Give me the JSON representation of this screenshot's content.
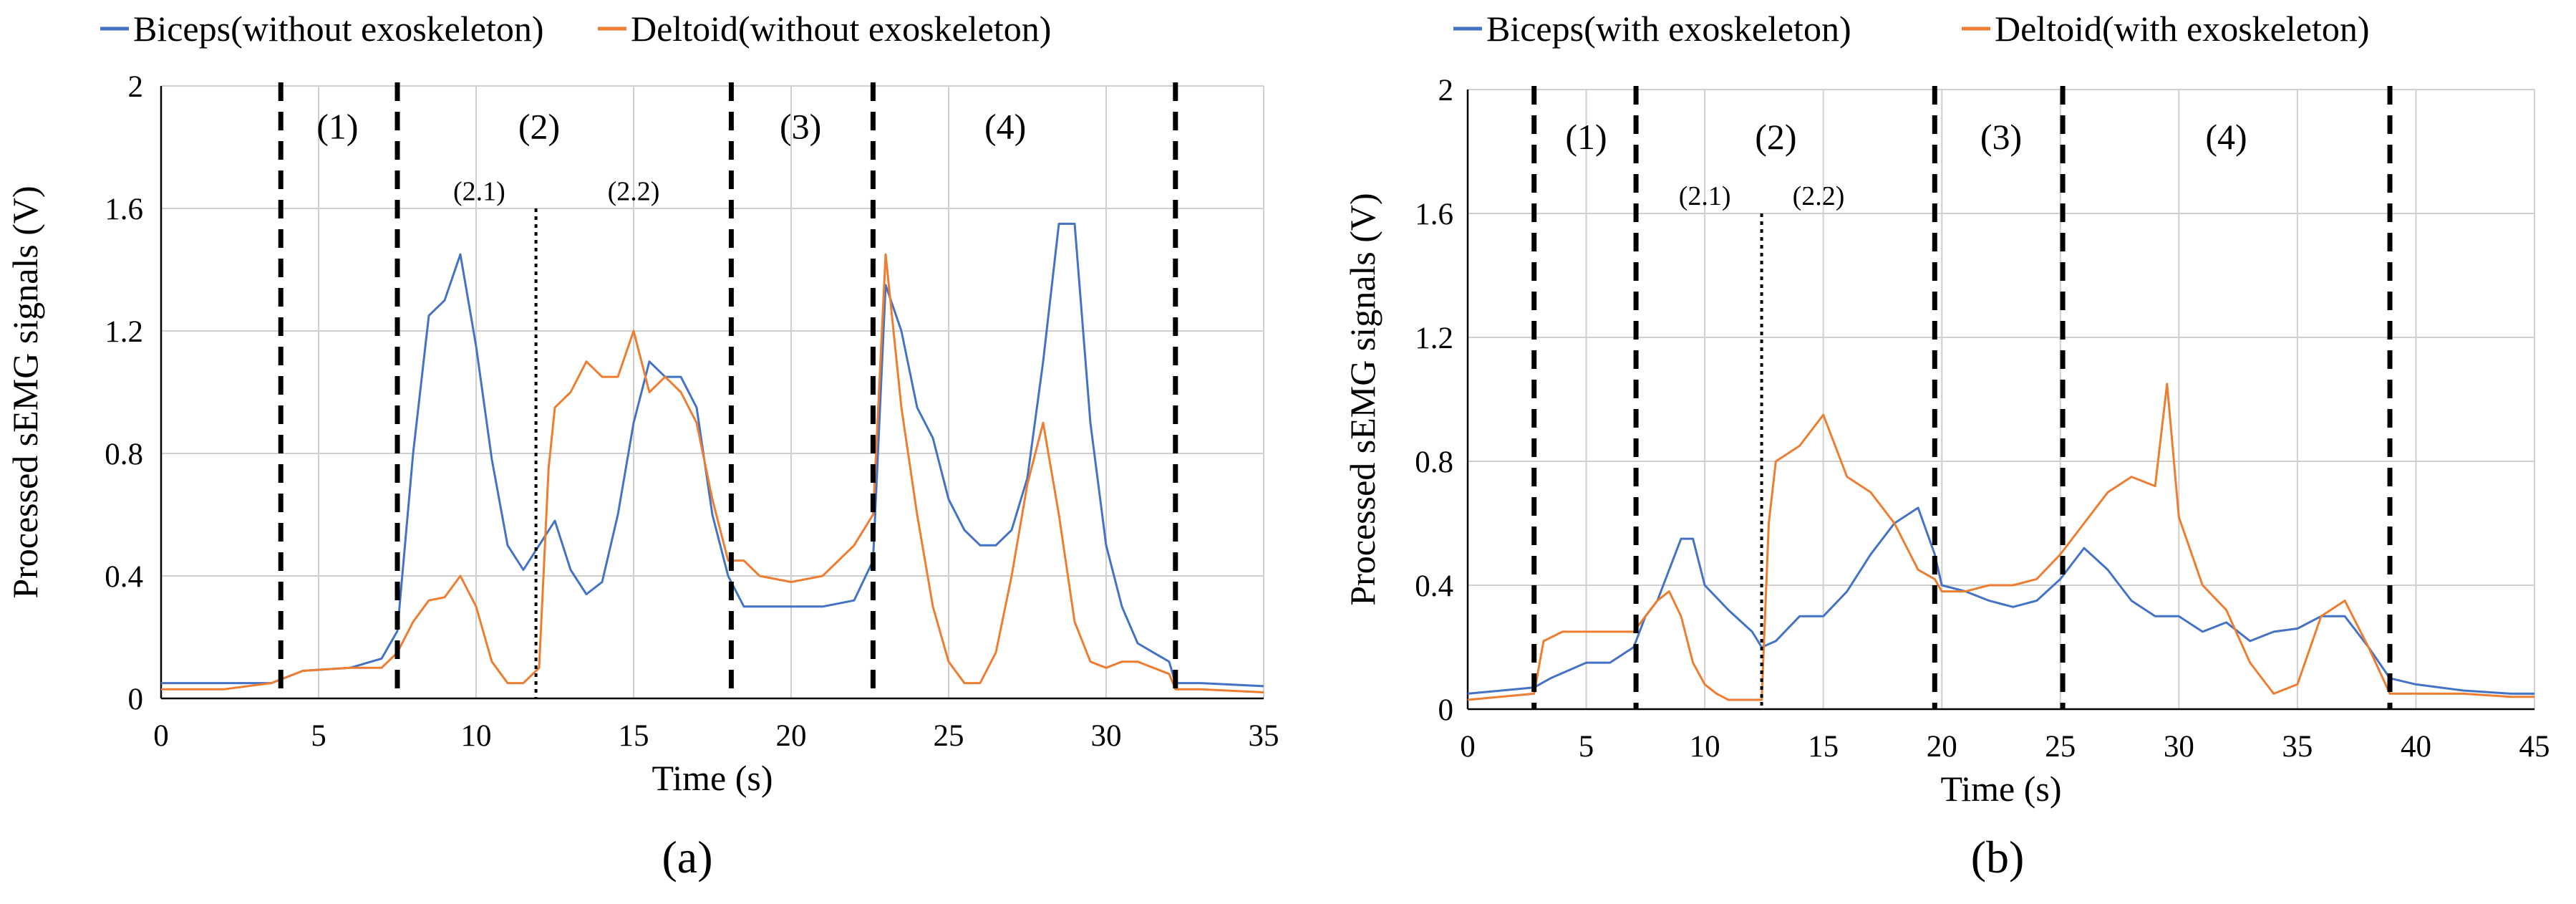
{
  "chart_data": [
    {
      "panel_label": "(a)",
      "type": "line",
      "title": "",
      "xlabel": "Time (s)",
      "ylabel": "Processed sEMG signals (V)",
      "xlim": [
        0,
        35
      ],
      "ylim": [
        0,
        2
      ],
      "xticks": [
        0,
        5,
        10,
        15,
        20,
        25,
        30,
        35
      ],
      "yticks": [
        "0",
        "0.4",
        "0.8",
        "1.2",
        "1.6",
        "2"
      ],
      "ytick_values": [
        0,
        0.4,
        0.8,
        1.2,
        1.6,
        2
      ],
      "grid": true,
      "legend_position": "top",
      "phase_boundaries": [
        3.8,
        7.5,
        18.1,
        22.6,
        32.2
      ],
      "subphase_boundary": 11.9,
      "phase_labels": [
        {
          "text": "(1)",
          "x": 5.6,
          "y": 1.87
        },
        {
          "text": "(2)",
          "x": 12.0,
          "y": 1.87
        },
        {
          "text": "(3)",
          "x": 20.3,
          "y": 1.87
        },
        {
          "text": "(4)",
          "x": 26.8,
          "y": 1.87
        }
      ],
      "subphase_labels": [
        {
          "text": "(2.1)",
          "x": 10.1,
          "y": 1.66
        },
        {
          "text": "(2.2)",
          "x": 15.0,
          "y": 1.66
        }
      ],
      "series": [
        {
          "name": "Biceps(without exoskeleton)",
          "color": "#4472c4",
          "x": [
            0,
            2,
            3.5,
            4.5,
            6,
            7,
            7.5,
            8,
            8.5,
            9,
            9.5,
            10,
            10.5,
            11,
            11.5,
            12,
            12.5,
            13,
            13.5,
            14,
            14.5,
            15,
            15.5,
            16,
            16.5,
            17,
            17.5,
            18,
            18.5,
            19,
            20,
            21,
            22,
            22.6,
            23,
            23.5,
            24,
            24.5,
            25,
            25.5,
            26,
            26.5,
            27,
            27.5,
            28,
            28.5,
            29,
            29.5,
            30,
            30.5,
            31,
            31.5,
            32,
            32.2,
            33,
            35
          ],
          "values": [
            0.05,
            0.05,
            0.05,
            0.09,
            0.1,
            0.13,
            0.22,
            0.8,
            1.25,
            1.3,
            1.45,
            1.15,
            0.78,
            0.5,
            0.42,
            0.5,
            0.58,
            0.42,
            0.34,
            0.38,
            0.6,
            0.9,
            1.1,
            1.05,
            1.05,
            0.95,
            0.6,
            0.4,
            0.3,
            0.3,
            0.3,
            0.3,
            0.32,
            0.45,
            1.35,
            1.2,
            0.95,
            0.85,
            0.65,
            0.55,
            0.5,
            0.5,
            0.55,
            0.72,
            1.1,
            1.55,
            1.55,
            0.9,
            0.5,
            0.3,
            0.18,
            0.15,
            0.12,
            0.05,
            0.05,
            0.04
          ]
        },
        {
          "name": "Deltoid(without exoskeleton)",
          "color": "#ed7d31",
          "x": [
            0,
            2,
            3.5,
            4.5,
            6,
            7,
            7.5,
            8,
            8.5,
            9,
            9.5,
            10,
            10.5,
            11,
            11.5,
            12,
            12.3,
            12.5,
            13,
            13.5,
            14,
            14.5,
            15,
            15.5,
            16,
            16.5,
            17,
            17.5,
            18,
            18.5,
            19,
            20,
            21,
            22,
            22.6,
            23,
            23.5,
            24,
            24.5,
            25,
            25.5,
            26,
            26.5,
            27,
            27.5,
            28,
            28.5,
            29,
            29.5,
            30,
            30.5,
            31,
            31.5,
            32,
            32.2,
            33,
            35
          ],
          "values": [
            0.03,
            0.03,
            0.05,
            0.09,
            0.1,
            0.1,
            0.15,
            0.25,
            0.32,
            0.33,
            0.4,
            0.3,
            0.12,
            0.05,
            0.05,
            0.1,
            0.75,
            0.95,
            1.0,
            1.1,
            1.05,
            1.05,
            1.2,
            1.0,
            1.05,
            1.0,
            0.9,
            0.65,
            0.45,
            0.45,
            0.4,
            0.38,
            0.4,
            0.5,
            0.6,
            1.45,
            0.95,
            0.6,
            0.3,
            0.12,
            0.05,
            0.05,
            0.15,
            0.4,
            0.7,
            0.9,
            0.6,
            0.25,
            0.12,
            0.1,
            0.12,
            0.12,
            0.1,
            0.08,
            0.03,
            0.03,
            0.02
          ]
        }
      ]
    },
    {
      "panel_label": "(b)",
      "type": "line",
      "title": "",
      "xlabel": "Time (s)",
      "ylabel": "Processed sEMG signals (V)",
      "xlim": [
        0,
        45
      ],
      "ylim": [
        0,
        2
      ],
      "xticks": [
        0,
        5,
        10,
        15,
        20,
        25,
        30,
        35,
        40,
        45
      ],
      "yticks": [
        "0",
        "0.4",
        "0.8",
        "1.2",
        "1.6",
        "2"
      ],
      "ytick_values": [
        0,
        0.4,
        0.8,
        1.2,
        1.6,
        2
      ],
      "grid": true,
      "legend_position": "top",
      "phase_boundaries": [
        2.8,
        7.1,
        19.7,
        25.1,
        38.9
      ],
      "subphase_boundary": 12.4,
      "phase_labels": [
        {
          "text": "(1)",
          "x": 5.0,
          "y": 1.85
        },
        {
          "text": "(2)",
          "x": 13.0,
          "y": 1.85
        },
        {
          "text": "(3)",
          "x": 22.5,
          "y": 1.85
        },
        {
          "text": "(4)",
          "x": 32.0,
          "y": 1.85
        }
      ],
      "subphase_labels": [
        {
          "text": "(2.1)",
          "x": 10.0,
          "y": 1.66
        },
        {
          "text": "(2.2)",
          "x": 14.8,
          "y": 1.66
        }
      ],
      "series": [
        {
          "name": "Biceps(with exoskeleton)",
          "color": "#4472c4",
          "x": [
            0,
            2.8,
            3.5,
            5,
            6,
            7,
            7.5,
            8,
            8.5,
            9,
            9.5,
            10,
            11,
            12,
            12.4,
            13,
            14,
            15,
            16,
            17,
            18,
            19,
            19.7,
            20,
            21,
            22,
            23,
            24,
            25,
            26,
            27,
            28,
            29,
            30,
            31,
            32,
            33,
            34,
            35,
            36,
            37,
            38,
            38.9,
            40,
            42,
            44,
            45
          ],
          "values": [
            0.05,
            0.07,
            0.1,
            0.15,
            0.15,
            0.2,
            0.3,
            0.35,
            0.45,
            0.55,
            0.55,
            0.4,
            0.32,
            0.25,
            0.2,
            0.22,
            0.3,
            0.3,
            0.38,
            0.5,
            0.6,
            0.65,
            0.5,
            0.4,
            0.38,
            0.35,
            0.33,
            0.35,
            0.42,
            0.52,
            0.45,
            0.35,
            0.3,
            0.3,
            0.25,
            0.28,
            0.22,
            0.25,
            0.26,
            0.3,
            0.3,
            0.2,
            0.1,
            0.08,
            0.06,
            0.05,
            0.05
          ]
        },
        {
          "name": "Deltoid(with exoskeleton)",
          "color": "#ed7d31",
          "x": [
            0,
            2.8,
            3.2,
            4,
            5,
            6,
            7,
            8,
            8.5,
            9,
            9.5,
            10,
            10.5,
            11,
            12,
            12.4,
            12.7,
            13,
            14,
            15,
            16,
            17,
            18,
            19,
            19.7,
            20,
            21,
            22,
            23,
            24,
            25,
            26,
            27,
            28,
            29,
            29.5,
            30,
            31,
            32,
            33,
            34,
            35,
            36,
            37,
            38,
            38.9,
            40,
            42,
            44,
            45
          ],
          "values": [
            0.03,
            0.05,
            0.22,
            0.25,
            0.25,
            0.25,
            0.25,
            0.35,
            0.38,
            0.3,
            0.15,
            0.08,
            0.05,
            0.03,
            0.03,
            0.03,
            0.6,
            0.8,
            0.85,
            0.95,
            0.75,
            0.7,
            0.6,
            0.45,
            0.42,
            0.38,
            0.38,
            0.4,
            0.4,
            0.42,
            0.5,
            0.6,
            0.7,
            0.75,
            0.72,
            1.05,
            0.62,
            0.4,
            0.32,
            0.15,
            0.05,
            0.08,
            0.3,
            0.35,
            0.2,
            0.05,
            0.05,
            0.05,
            0.04,
            0.04
          ]
        }
      ]
    }
  ]
}
